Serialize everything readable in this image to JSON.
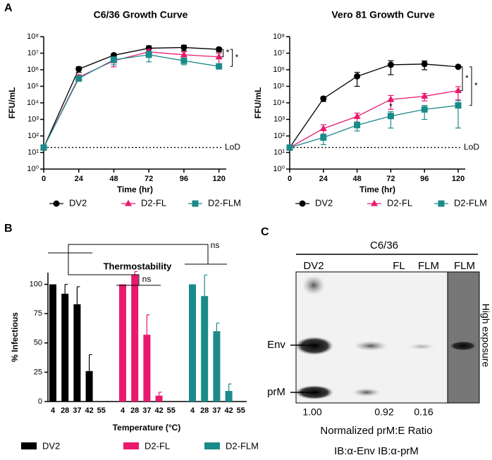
{
  "panel_labels": [
    "A",
    "B",
    "C"
  ],
  "chart_data": [
    {
      "type": "line",
      "title": "C6/36 Growth Curve",
      "x_label": "Time (hr)",
      "y_label": "FFU/mL",
      "log_scale": true,
      "x": [
        0,
        24,
        48,
        72,
        96,
        120
      ],
      "xlim": [
        0,
        125
      ],
      "xticks": [
        0,
        24,
        48,
        72,
        96,
        120
      ],
      "ylim": [
        1,
        100000000
      ],
      "yticks": [
        {
          "value": 1,
          "label": "10⁰"
        },
        {
          "value": 10,
          "label": "10¹"
        },
        {
          "value": 100,
          "label": "10²"
        },
        {
          "value": 1000,
          "label": "10³"
        },
        {
          "value": 10000,
          "label": "10⁴"
        },
        {
          "value": 100000,
          "label": "10⁵"
        },
        {
          "value": 1000000,
          "label": "10⁶"
        },
        {
          "value": 10000000,
          "label": "10⁷"
        },
        {
          "value": 100000000,
          "label": "10⁸"
        }
      ],
      "lod": {
        "value": 20,
        "label": "LoD"
      },
      "significance": [
        "*",
        "*"
      ],
      "series": [
        {
          "name": "DV2",
          "color": "#000000",
          "marker": "circle",
          "values": [
            20,
            1100000,
            7500000,
            20000000,
            22000000,
            17000000
          ],
          "errors": [
            0,
            400000,
            2000000,
            8000000,
            8000000,
            5000000
          ]
        },
        {
          "name": "D2-FL",
          "color": "#e8196e",
          "marker": "triangle",
          "values": [
            20,
            350000,
            3500000,
            12000000,
            8000000,
            6000000
          ],
          "errors": [
            0,
            150000,
            2000000,
            5000000,
            4000000,
            4000000
          ]
        },
        {
          "name": "D2-FLM",
          "color": "#1b8a8a",
          "marker": "square",
          "values": [
            20,
            300000,
            4000000,
            8000000,
            3500000,
            1600000
          ],
          "errors": [
            0,
            100000,
            2000000,
            5000000,
            1500000,
            400000
          ]
        }
      ]
    },
    {
      "type": "line",
      "title": "Vero 81 Growth Curve",
      "x_label": "Time (hr)",
      "y_label": "FFU/mL",
      "log_scale": true,
      "x": [
        0,
        24,
        48,
        72,
        96,
        120
      ],
      "xlim": [
        0,
        125
      ],
      "xticks": [
        0,
        24,
        48,
        72,
        96,
        120
      ],
      "ylim": [
        1,
        100000000
      ],
      "yticks": [
        {
          "value": 1,
          "label": "10⁰"
        },
        {
          "value": 10,
          "label": "10¹"
        },
        {
          "value": 100,
          "label": "10²"
        },
        {
          "value": 1000,
          "label": "10³"
        },
        {
          "value": 10000,
          "label": "10⁴"
        },
        {
          "value": 100000,
          "label": "10⁵"
        },
        {
          "value": 1000000,
          "label": "10⁶"
        },
        {
          "value": 10000000,
          "label": "10⁷"
        },
        {
          "value": 100000000,
          "label": "10⁸"
        }
      ],
      "lod": {
        "value": 20,
        "label": "LoD"
      },
      "significance": [
        "*",
        "*"
      ],
      "point_annotation": {
        "text": "*",
        "x": 72
      },
      "series": [
        {
          "name": "DV2",
          "color": "#000000",
          "marker": "circle",
          "values": [
            20,
            18000,
            400000,
            2000000,
            2200000,
            1500000
          ],
          "errors": [
            0,
            6000,
            300000,
            1500000,
            1200000,
            200000
          ]
        },
        {
          "name": "D2-FL",
          "color": "#e8196e",
          "marker": "triangle",
          "values": [
            20,
            280,
            1500,
            16000,
            25000,
            55000
          ],
          "errors": [
            0,
            200,
            900,
            12000,
            12000,
            40000
          ]
        },
        {
          "name": "D2-FLM",
          "color": "#1b8a8a",
          "marker": "square",
          "values": [
            20,
            80,
            450,
            1600,
            4000,
            7000
          ],
          "errors": [
            0,
            50,
            250,
            1300,
            3000,
            6700
          ]
        }
      ]
    },
    {
      "type": "bar",
      "title": "Thermostability",
      "x_label": "Temperature (°C)",
      "y_label": "% Infectious",
      "categories": [
        "4",
        "28",
        "37",
        "42",
        "55"
      ],
      "ylim": [
        0,
        110
      ],
      "yticks": [
        0,
        25,
        50,
        75,
        100
      ],
      "significance": [
        "ns",
        "ns"
      ],
      "series": [
        {
          "name": "DV2",
          "color": "#000000",
          "values": [
            100,
            92,
            83,
            26,
            0
          ],
          "errors": [
            0,
            8,
            15,
            14,
            0
          ]
        },
        {
          "name": "D2-FL",
          "color": "#e8196e",
          "values": [
            100,
            108,
            57,
            5,
            0
          ],
          "errors": [
            0,
            3,
            17,
            3,
            0
          ]
        },
        {
          "name": "D2-FLM",
          "color": "#1b8a8a",
          "values": [
            100,
            90,
            60,
            9,
            0
          ],
          "errors": [
            0,
            18,
            7,
            6,
            0
          ]
        }
      ]
    }
  ],
  "blot": {
    "header": "C6/36",
    "lanes": [
      "DV2",
      "FL",
      "FLM",
      "FLM"
    ],
    "side_label": "High exposure",
    "bands": [
      "Env",
      "prM"
    ],
    "ratios": [
      "1.00",
      "0.92",
      "0.16"
    ],
    "ratio_label": "Normalized prM:E Ratio",
    "footer": "IB:α-Env IB:α-prM"
  }
}
